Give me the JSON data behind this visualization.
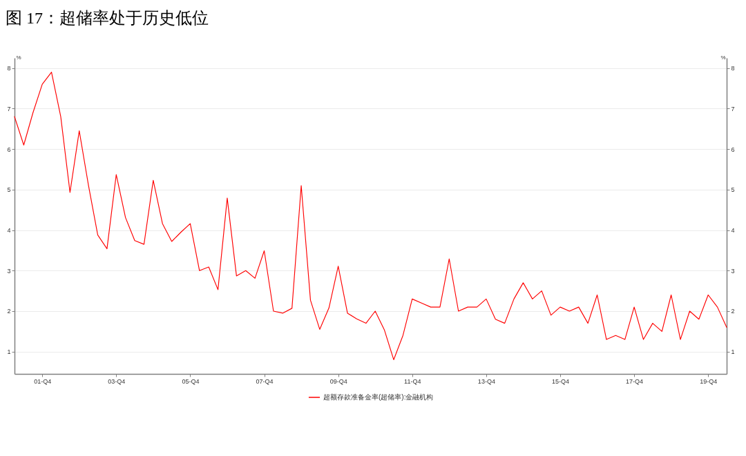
{
  "chart_data": {
    "type": "line",
    "title": "图 17：超储率处于历史低位",
    "ylabel": "%",
    "y2label": "%",
    "categories": [
      null,
      null,
      null,
      "01-Q4",
      null,
      null,
      null,
      null,
      null,
      null,
      null,
      "03-Q4",
      null,
      null,
      null,
      null,
      null,
      null,
      null,
      "05-Q4",
      null,
      null,
      null,
      null,
      null,
      null,
      null,
      "07-Q4",
      null,
      null,
      null,
      null,
      null,
      null,
      null,
      "09-Q4",
      null,
      null,
      null,
      null,
      null,
      null,
      null,
      "11-Q4",
      null,
      null,
      null,
      null,
      null,
      null,
      null,
      "13-Q4",
      null,
      null,
      null,
      null,
      null,
      null,
      null,
      "15-Q4",
      null,
      null,
      null,
      null,
      null,
      null,
      null,
      "17-Q4",
      null,
      null,
      null,
      null,
      null,
      null,
      null,
      "19-Q4",
      null,
      null
    ],
    "series": [
      {
        "name": "超额存款准备金率(超储率):金融机构",
        "color": "#ff0000",
        "values": [
          6.8,
          6.1,
          6.9,
          7.6,
          7.9,
          6.8,
          4.93,
          6.45,
          5.1,
          3.88,
          3.54,
          5.37,
          4.31,
          3.74,
          3.65,
          5.23,
          4.16,
          3.72,
          3.95,
          4.16,
          3.0,
          3.09,
          2.53,
          4.79,
          2.87,
          3.0,
          2.81,
          3.49,
          2.0,
          1.95,
          2.07,
          5.1,
          2.27,
          1.55,
          2.08,
          3.11,
          1.95,
          1.81,
          1.7,
          2.0,
          1.53,
          0.8,
          1.4,
          2.3,
          2.2,
          2.1,
          2.1,
          3.29,
          2.0,
          2.1,
          2.1,
          2.3,
          1.8,
          1.7,
          2.3,
          2.7,
          2.3,
          2.5,
          1.9,
          2.1,
          2.0,
          2.1,
          1.7,
          2.4,
          1.3,
          1.4,
          1.3,
          2.1,
          1.3,
          1.7,
          1.5,
          2.4,
          1.3,
          2.0,
          1.8,
          2.4,
          2.1,
          1.6
        ]
      }
    ],
    "ylim": [
      0.45,
      8.25
    ],
    "yticks": [
      1,
      2,
      3,
      4,
      5,
      6,
      7,
      8
    ],
    "y2lim": [
      0.45,
      8.25
    ],
    "y2ticks": [
      1,
      2,
      3,
      4,
      5,
      6,
      7,
      8
    ],
    "grid": "y",
    "legend": "bottom",
    "line_style": "solid"
  }
}
